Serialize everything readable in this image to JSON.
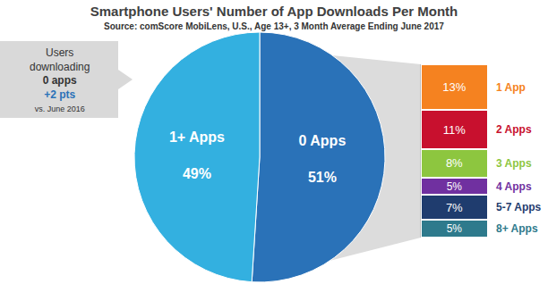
{
  "chart_data": [
    {
      "type": "pie",
      "title": "Smartphone Users' Number of App Downloads Per Month",
      "subtitle": "Source: comScore MobiLens, U.S., Age 13+, 3 Month Average Ending June 2017",
      "categories": [
        "0 Apps",
        "1+ Apps"
      ],
      "values": [
        51,
        49
      ],
      "value_labels": [
        "51%",
        "49%"
      ],
      "colors": [
        "#2a72b8",
        "#33b0e0"
      ],
      "data_labels": true,
      "annotations": [
        {
          "lines": [
            "Users",
            "downloading",
            "0 apps",
            "+2 pts",
            "vs. June 2016"
          ]
        }
      ]
    },
    {
      "type": "bar",
      "stacked": true,
      "categories": [
        "1 App",
        "2 Apps",
        "3 Apps",
        "4 Apps",
        "5-7 Apps",
        "8+ Apps"
      ],
      "values": [
        13,
        11,
        8,
        5,
        7,
        5
      ],
      "value_labels": [
        "13%",
        "11%",
        "8%",
        "5%",
        "7%",
        "5%"
      ],
      "colors": [
        "#f58220",
        "#c8102e",
        "#8dc63f",
        "#7030a0",
        "#1f3c6e",
        "#2e7a8c"
      ],
      "ylim": [
        0,
        49
      ],
      "yticks": [],
      "tick_labels": false,
      "data_labels": true
    }
  ]
}
